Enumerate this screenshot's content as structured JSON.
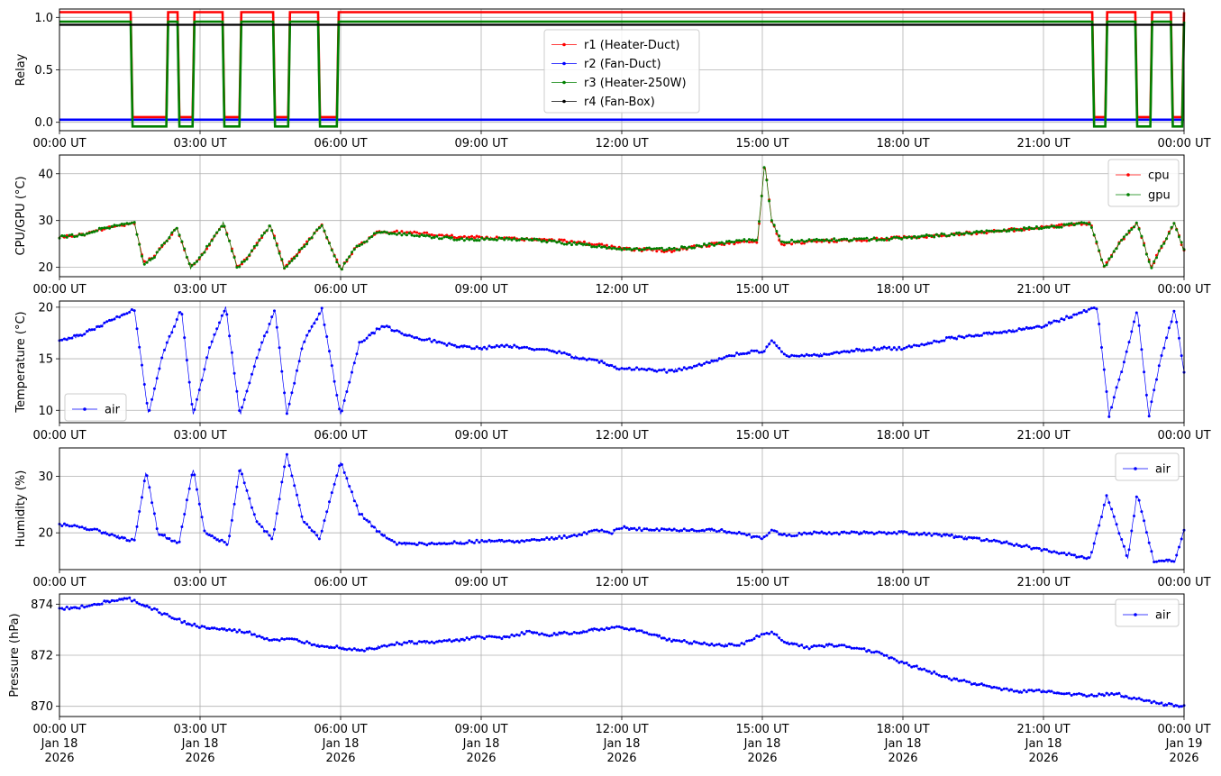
{
  "figure": {
    "time_ticks": [
      "00:00 UT",
      "03:00 UT",
      "06:00 UT",
      "09:00 UT",
      "12:00 UT",
      "15:00 UT",
      "18:00 UT",
      "21:00 UT",
      "00:00 UT"
    ],
    "date_lines": [
      "Jan 18",
      "Jan 18",
      "Jan 18",
      "Jan 18",
      "Jan 18",
      "Jan 18",
      "Jan 18",
      "Jan 18",
      "Jan 19"
    ],
    "year_lines": [
      "2026",
      "2026",
      "2026",
      "2026",
      "2026",
      "2026",
      "2026",
      "2026",
      "2026"
    ]
  },
  "chart_data": [
    {
      "type": "line",
      "ylabel": "Relay",
      "xlim": [
        0,
        24
      ],
      "ylim": [
        -0.08,
        1.08
      ],
      "yticks": [
        0.0,
        0.5,
        1.0
      ],
      "ytick_labels": [
        "0.0",
        "0.5",
        "1.0"
      ],
      "grid": true,
      "legend_position": "top-center",
      "series": [
        {
          "name": "r1 (Heater-Duct)",
          "color": "#ff0000",
          "offset": 0.05,
          "kind": "heater"
        },
        {
          "name": "r2 (Fan-Duct)",
          "color": "#0000ff",
          "offset": 0.025,
          "kind": "off"
        },
        {
          "name": "r3 (Heater-250W)",
          "color": "#008000",
          "offset": -0.04,
          "kind": "heater"
        },
        {
          "name": "r4 (Fan-Box)",
          "color": "#000000",
          "offset": -0.06,
          "kind": "on"
        }
      ],
      "heater_off_intervals": [
        [
          1.55,
          2.3
        ],
        [
          2.55,
          2.85
        ],
        [
          3.5,
          3.85
        ],
        [
          4.6,
          4.9
        ],
        [
          5.55,
          5.95
        ],
        [
          22.05,
          22.35
        ],
        [
          23.0,
          23.3
        ],
        [
          23.75,
          24.0
        ]
      ]
    },
    {
      "type": "line",
      "ylabel": "CPU/GPU (°C)",
      "xlim": [
        0,
        24
      ],
      "ylim": [
        18,
        44
      ],
      "yticks": [
        20,
        30,
        40
      ],
      "ytick_labels": [
        "20",
        "30",
        "40"
      ],
      "grid": true,
      "legend_position": "top-right",
      "series": [
        {
          "name": "cpu",
          "color": "#ff0000",
          "x": [
            0,
            0.5,
            1.0,
            1.6,
            1.8,
            2.0,
            2.5,
            2.8,
            3.0,
            3.5,
            3.8,
            4.0,
            4.5,
            4.8,
            5.0,
            5.6,
            6.0,
            6.3,
            6.8,
            7.5,
            8.5,
            10.0,
            11.0,
            12.0,
            13.0,
            14.0,
            14.9,
            15.05,
            15.2,
            15.4,
            16.0,
            17.5,
            19.0,
            21.0,
            22.0,
            22.3,
            22.6,
            23.0,
            23.3,
            23.5,
            23.8,
            24.0
          ],
          "y": [
            26.5,
            27.0,
            28.5,
            29.5,
            21.0,
            22.0,
            28.5,
            20.0,
            22.0,
            29.5,
            20.0,
            22.0,
            29.0,
            20.0,
            22.0,
            29.0,
            19.5,
            24.0,
            27.5,
            27.5,
            26.5,
            26.0,
            25.5,
            24.0,
            23.5,
            25.0,
            25.5,
            42.5,
            30.0,
            25.0,
            25.5,
            26.0,
            27.0,
            28.5,
            29.5,
            20.0,
            25.0,
            29.5,
            20.0,
            24.0,
            29.5,
            23.5
          ]
        },
        {
          "name": "gpu",
          "color": "#008000",
          "x": [
            0,
            0.5,
            1.0,
            1.6,
            1.8,
            2.0,
            2.5,
            2.8,
            3.0,
            3.5,
            3.8,
            4.0,
            4.5,
            4.8,
            5.0,
            5.6,
            6.0,
            6.3,
            6.8,
            7.5,
            8.5,
            10.0,
            11.0,
            12.0,
            13.0,
            14.0,
            14.9,
            15.05,
            15.2,
            15.4,
            16.0,
            17.5,
            19.0,
            21.0,
            22.0,
            22.3,
            22.6,
            23.0,
            23.3,
            23.5,
            23.8,
            24.0
          ],
          "y": [
            26.5,
            27.0,
            28.5,
            29.5,
            20.5,
            22.0,
            28.5,
            19.8,
            22.0,
            29.5,
            19.8,
            22.0,
            29.0,
            19.8,
            22.0,
            29.0,
            19.5,
            24.0,
            27.5,
            27.0,
            26.0,
            26.0,
            25.0,
            24.0,
            23.8,
            25.0,
            26.0,
            42.5,
            30.0,
            25.5,
            25.8,
            26.0,
            27.0,
            28.5,
            29.5,
            19.8,
            25.0,
            29.5,
            19.8,
            24.0,
            29.5,
            23.5
          ]
        }
      ]
    },
    {
      "type": "line",
      "ylabel": "Temperature (°C)",
      "xlim": [
        0,
        24
      ],
      "ylim": [
        8.8,
        20.6
      ],
      "yticks": [
        10,
        15,
        20
      ],
      "ytick_labels": [
        "10",
        "15",
        "20"
      ],
      "grid": true,
      "legend_position": "bottom-left",
      "series": [
        {
          "name": "air",
          "color": "#0000ff",
          "x": [
            0,
            0.4,
            1.0,
            1.6,
            1.9,
            2.2,
            2.6,
            2.85,
            3.2,
            3.55,
            3.85,
            4.2,
            4.6,
            4.85,
            5.2,
            5.6,
            6.0,
            6.4,
            6.9,
            7.5,
            8.5,
            9.0,
            9.5,
            10.0,
            10.5,
            11.0,
            11.5,
            12.0,
            12.5,
            13.0,
            13.5,
            14.0,
            14.5,
            14.9,
            15.0,
            15.2,
            15.5,
            16.0,
            16.5,
            17.0,
            17.5,
            18.0,
            19.0,
            20.0,
            21.0,
            22.0,
            22.15,
            22.4,
            22.8,
            23.0,
            23.25,
            23.5,
            23.8,
            24.0
          ],
          "y": [
            16.8,
            17.2,
            18.5,
            19.8,
            9.5,
            15.5,
            19.8,
            9.5,
            16.0,
            20.0,
            9.5,
            15.0,
            19.8,
            9.5,
            16.5,
            19.8,
            9.5,
            16.5,
            18.2,
            17.2,
            16.2,
            16.0,
            16.3,
            16.0,
            15.8,
            15.2,
            14.8,
            14.0,
            14.0,
            13.8,
            14.2,
            14.8,
            15.5,
            15.8,
            15.5,
            16.8,
            15.3,
            15.3,
            15.5,
            15.8,
            16.0,
            16.0,
            17.0,
            17.5,
            18.2,
            19.8,
            19.8,
            9.5,
            16.0,
            19.8,
            9.5,
            15.0,
            19.8,
            13.8
          ]
        }
      ]
    },
    {
      "type": "line",
      "ylabel": "Humidity (%)",
      "xlim": [
        0,
        24
      ],
      "ylim": [
        13.5,
        35
      ],
      "yticks": [
        20,
        30
      ],
      "ytick_labels": [
        "20",
        "30"
      ],
      "grid": true,
      "legend_position": "top-right",
      "series": [
        {
          "name": "air",
          "color": "#0000ff",
          "x": [
            0,
            0.5,
            1.0,
            1.6,
            1.85,
            2.1,
            2.55,
            2.85,
            3.1,
            3.6,
            3.85,
            4.2,
            4.55,
            4.85,
            5.2,
            5.55,
            6.0,
            6.4,
            6.9,
            7.2,
            8.0,
            9.0,
            10.0,
            11.0,
            11.5,
            11.8,
            12.0,
            12.5,
            13.0,
            14.0,
            14.5,
            15.0,
            15.2,
            15.5,
            16.0,
            17.0,
            18.0,
            19.0,
            20.0,
            21.0,
            22.0,
            22.35,
            22.8,
            23.0,
            23.35,
            23.8,
            24.0
          ],
          "y": [
            21.5,
            21.0,
            20.0,
            18.5,
            31.0,
            20.0,
            18.0,
            31.5,
            20.0,
            18.0,
            31.5,
            22.0,
            19.0,
            34.0,
            22.0,
            19.0,
            32.5,
            23.5,
            19.5,
            18.0,
            18.0,
            18.5,
            18.5,
            19.5,
            20.5,
            20.0,
            21.0,
            20.5,
            20.5,
            20.5,
            20.0,
            19.0,
            20.5,
            19.5,
            20.0,
            20.0,
            20.0,
            19.5,
            18.5,
            17.0,
            15.5,
            26.5,
            15.5,
            27.0,
            15.0,
            15.0,
            20.5
          ]
        }
      ]
    },
    {
      "type": "line",
      "ylabel": "Pressure (hPa)",
      "xlim": [
        0,
        24
      ],
      "ylim": [
        869.6,
        874.4
      ],
      "yticks": [
        870,
        872,
        874
      ],
      "ytick_labels": [
        "870",
        "872",
        "874"
      ],
      "grid": true,
      "legend_position": "top-right",
      "series": [
        {
          "name": "air",
          "color": "#0000ff",
          "x": [
            0,
            0.5,
            1.0,
            1.5,
            2.0,
            2.5,
            3.0,
            3.5,
            4.0,
            4.5,
            5.0,
            5.5,
            6.0,
            6.5,
            7.0,
            7.5,
            8.0,
            8.5,
            9.0,
            9.5,
            10.0,
            10.5,
            11.0,
            11.5,
            12.0,
            12.5,
            13.0,
            13.5,
            14.0,
            14.5,
            15.0,
            15.2,
            15.5,
            16.0,
            16.5,
            17.0,
            17.5,
            18.0,
            18.5,
            19.0,
            19.5,
            20.0,
            20.5,
            21.0,
            21.5,
            22.0,
            22.5,
            23.0,
            23.5,
            24.0
          ],
          "y": [
            873.8,
            873.9,
            874.1,
            874.2,
            873.8,
            873.4,
            873.1,
            873.0,
            872.9,
            872.6,
            872.6,
            872.4,
            872.3,
            872.2,
            872.4,
            872.5,
            872.5,
            872.6,
            872.7,
            872.7,
            872.9,
            872.8,
            872.9,
            873.0,
            873.1,
            872.9,
            872.6,
            872.5,
            872.4,
            872.4,
            872.8,
            872.9,
            872.5,
            872.3,
            872.4,
            872.3,
            872.1,
            871.7,
            871.4,
            871.1,
            870.9,
            870.7,
            870.6,
            870.6,
            870.5,
            870.4,
            870.5,
            870.3,
            870.1,
            870.0
          ]
        }
      ]
    }
  ]
}
